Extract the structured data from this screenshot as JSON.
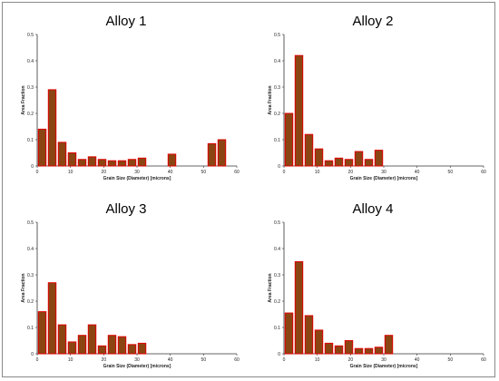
{
  "colors": {
    "bar_fill": "#8B4513",
    "bar_edge": "#E00000",
    "axis": "#333333"
  },
  "chart_data": [
    {
      "type": "bar",
      "title": "Alloy 1",
      "xlabel": "Grain Size (Diameter) [microns]",
      "ylabel": "Area Fraction",
      "xlim": [
        0,
        60
      ],
      "ylim": [
        0,
        0.5
      ],
      "xticks": [
        0,
        10,
        20,
        30,
        40,
        50,
        60
      ],
      "yticks": [
        0,
        0.1,
        0.2,
        0.3,
        0.4,
        0.5
      ],
      "x": [
        1.5,
        4.5,
        7.5,
        10.5,
        13.5,
        16.5,
        19.5,
        22.5,
        25.5,
        28.5,
        31.5,
        40.5,
        52.5,
        55.5
      ],
      "values": [
        0.14,
        0.29,
        0.09,
        0.05,
        0.025,
        0.035,
        0.025,
        0.02,
        0.02,
        0.025,
        0.03,
        0.045,
        0.085,
        0.1
      ],
      "grid": false
    },
    {
      "type": "bar",
      "title": "Alloy 2",
      "xlabel": "Grain Size (Diameter) [microns]",
      "ylabel": "Area Fraction",
      "xlim": [
        0,
        60
      ],
      "ylim": [
        0,
        0.5
      ],
      "xticks": [
        0,
        10,
        20,
        30,
        40,
        50,
        60
      ],
      "yticks": [
        0,
        0.1,
        0.2,
        0.3,
        0.4,
        0.5
      ],
      "x": [
        1.5,
        4.5,
        7.5,
        10.5,
        13.5,
        16.5,
        19.5,
        22.5,
        25.5,
        28.5
      ],
      "values": [
        0.2,
        0.42,
        0.12,
        0.065,
        0.02,
        0.03,
        0.025,
        0.055,
        0.025,
        0.06
      ],
      "grid": false
    },
    {
      "type": "bar",
      "title": "Alloy 3",
      "xlabel": "Grain Size (Diameter) [microns]",
      "ylabel": "Area Fraction",
      "xlim": [
        0,
        60
      ],
      "ylim": [
        0,
        0.5
      ],
      "xticks": [
        0,
        10,
        20,
        30,
        40,
        50,
        60
      ],
      "yticks": [
        0,
        0.1,
        0.2,
        0.3,
        0.4,
        0.5
      ],
      "x": [
        1.5,
        4.5,
        7.5,
        10.5,
        13.5,
        16.5,
        19.5,
        22.5,
        25.5,
        28.5,
        31.5
      ],
      "values": [
        0.16,
        0.27,
        0.11,
        0.045,
        0.07,
        0.11,
        0.03,
        0.07,
        0.065,
        0.035,
        0.04
      ],
      "grid": false
    },
    {
      "type": "bar",
      "title": "Alloy 4",
      "xlabel": "Grain Size (Diameter) [microns]",
      "ylabel": "Area Fraction",
      "xlim": [
        0,
        60
      ],
      "ylim": [
        0,
        0.5
      ],
      "xticks": [
        0,
        10,
        20,
        30,
        40,
        50,
        60
      ],
      "yticks": [
        0,
        0.1,
        0.2,
        0.3,
        0.4,
        0.5
      ],
      "x": [
        1.5,
        4.5,
        7.5,
        10.5,
        13.5,
        16.5,
        19.5,
        22.5,
        25.5,
        28.5,
        31.5
      ],
      "values": [
        0.155,
        0.35,
        0.145,
        0.09,
        0.04,
        0.03,
        0.05,
        0.02,
        0.02,
        0.025,
        0.07
      ],
      "grid": false
    }
  ]
}
